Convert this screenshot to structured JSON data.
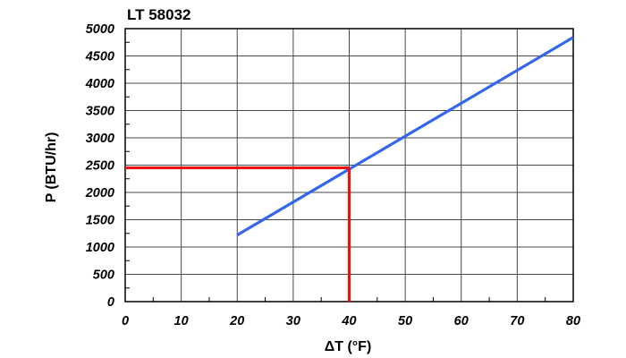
{
  "chart_data": {
    "type": "line",
    "title": "LT 58032",
    "xlabel": "ΔT (°F)",
    "ylabel": "P (BTU/hr)",
    "xlim": [
      0,
      80
    ],
    "ylim": [
      0,
      5000
    ],
    "xticks": [
      0,
      10,
      20,
      30,
      40,
      50,
      60,
      70,
      80
    ],
    "yticks": [
      0,
      500,
      1000,
      1500,
      2000,
      2500,
      3000,
      3500,
      4000,
      4500,
      5000
    ],
    "grid": true,
    "series": [
      {
        "color": "#3366ee",
        "x": [
          20,
          80
        ],
        "y": [
          1220,
          4840
        ]
      }
    ],
    "annotations": [
      {
        "kind": "reference-lines",
        "color": "#ee1111",
        "x": 40,
        "y": 2450
      }
    ]
  }
}
